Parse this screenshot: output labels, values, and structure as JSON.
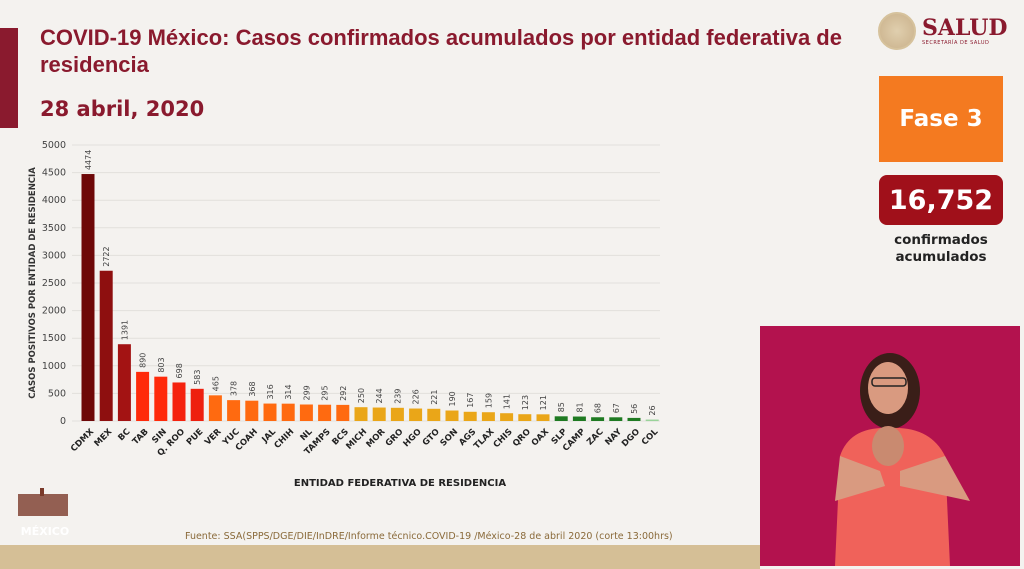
{
  "header": {
    "title": "COVID-19 México: Casos confirmados acumulados por entidad federativa de residencia",
    "date": "28 abril, 2020"
  },
  "logo": {
    "name": "SALUD",
    "subtitle": "SECRETARÍA DE SALUD"
  },
  "phase": {
    "label": "Fase 3"
  },
  "summary": {
    "total": "16,752",
    "label_line1": "confirmados",
    "label_line2": "acumulados"
  },
  "footnote": "Fuente: SSA(SPPS/DGE/DIE/InDRE/Informe técnico.COVID-19 /México-28 de abril 2020 (corte 13:00hrs)",
  "colors": {
    "brand": "#8a1a2e",
    "phase": "#f47a20",
    "total": "#a0101a"
  },
  "chart_data": {
    "type": "bar",
    "title": "",
    "xlabel": "ENTIDAD FEDERATIVA DE RESIDENCIA",
    "ylabel": "CASOS POSITIVOS POR ENTIDAD DE RESIDENCIA",
    "ylim": [
      0,
      5000
    ],
    "yticks": [
      0,
      500,
      1000,
      1500,
      2000,
      2500,
      3000,
      3500,
      4000,
      4500,
      5000
    ],
    "grid": true,
    "categories": [
      "CDMX",
      "MEX",
      "BC",
      "TAB",
      "SIN",
      "Q. ROO",
      "PUE",
      "VER",
      "YUC",
      "COAH",
      "JAL",
      "CHIH",
      "NL",
      "TAMPS",
      "BCS",
      "MICH",
      "MOR",
      "GRO",
      "HGO",
      "GTO",
      "SON",
      "AGS",
      "TLAX",
      "CHIS",
      "QRO",
      "OAX",
      "SLP",
      "CAMP",
      "ZAC",
      "NAY",
      "DGO",
      "COL"
    ],
    "values": [
      4474,
      2722,
      1391,
      890,
      803,
      698,
      583,
      465,
      378,
      368,
      316,
      314,
      299,
      295,
      292,
      250,
      244,
      239,
      226,
      221,
      190,
      167,
      159,
      141,
      123,
      121,
      85,
      81,
      68,
      67,
      56,
      26
    ],
    "bar_colors": [
      "#6e0808",
      "#8e0f0f",
      "#a31313",
      "#ff2a0a",
      "#ff2a0a",
      "#f5220e",
      "#ee200f",
      "#ff6a10",
      "#ff6a10",
      "#ff6a10",
      "#ff6a10",
      "#ff6a10",
      "#ff6a10",
      "#ff6a10",
      "#ff6a10",
      "#eaa618",
      "#eaa618",
      "#eaa618",
      "#eaa618",
      "#eaa618",
      "#eaa618",
      "#eaa618",
      "#eaa618",
      "#eaa618",
      "#eaa618",
      "#eaa618",
      "#1f7a22",
      "#1f7a22",
      "#1f7a22",
      "#1f7a22",
      "#1f7a22",
      "#9ad39a"
    ]
  }
}
